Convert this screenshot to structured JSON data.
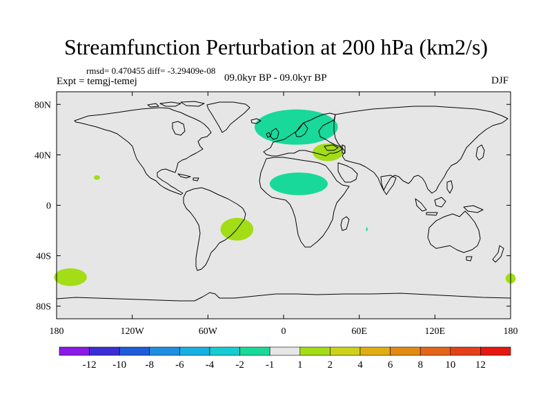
{
  "title": "Streamfunction Perturbation at 200 hPa (km2/s)",
  "stats": "rmsd= 0.470455 diff= -3.29409e-08",
  "experiment": "Expt = temgj-temej",
  "period": "09.0kyr BP - 09.0kyr BP",
  "season": "DJF",
  "chart_data": {
    "type": "heatmap",
    "projection": "cylindrical-equidistant",
    "background_color": "#e6e6e6",
    "xlim": [
      -180,
      180
    ],
    "ylim": [
      -90,
      90
    ],
    "x_ticks": [
      {
        "value": -180,
        "label": "180"
      },
      {
        "value": -120,
        "label": "120W"
      },
      {
        "value": -60,
        "label": "60W"
      },
      {
        "value": 0,
        "label": "0"
      },
      {
        "value": 60,
        "label": "60E"
      },
      {
        "value": 120,
        "label": "120E"
      },
      {
        "value": 180,
        "label": "180"
      }
    ],
    "y_ticks": [
      {
        "value": 80,
        "label": "80N"
      },
      {
        "value": 40,
        "label": "40N"
      },
      {
        "value": 0,
        "label": "0"
      },
      {
        "value": -40,
        "label": "40S"
      },
      {
        "value": -80,
        "label": "80S"
      }
    ],
    "anomalies": [
      {
        "name": "north-atlantic-europe-negative",
        "lon": 10,
        "lat": 62,
        "lon_radius": 33,
        "lat_radius": 14,
        "value": -1.5,
        "color": "#19d99a"
      },
      {
        "name": "mediterranean-positive",
        "lon": 35,
        "lat": 42,
        "lon_radius": 12,
        "lat_radius": 7,
        "value": 1.5,
        "color": "#a2dd16"
      },
      {
        "name": "north-africa-negative",
        "lon": 12,
        "lat": 17,
        "lon_radius": 23,
        "lat_radius": 9,
        "value": -1.5,
        "color": "#19d99a"
      },
      {
        "name": "south-atlantic-positive",
        "lon": -37,
        "lat": -19,
        "lon_radius": 13,
        "lat_radius": 9,
        "value": 1.5,
        "color": "#a2dd16"
      },
      {
        "name": "pacific-small-positive",
        "lon": -148,
        "lat": 22,
        "lon_radius": 2.5,
        "lat_radius": 1.8,
        "value": 1.5,
        "color": "#a2dd16"
      },
      {
        "name": "south-pacific-positive",
        "lon": -169,
        "lat": -57,
        "lon_radius": 13,
        "lat_radius": 7,
        "value": 1.5,
        "color": "#a2dd16"
      },
      {
        "name": "south-pacific-east-edge-positive",
        "lon": 180,
        "lat": -58,
        "lon_radius": 4,
        "lat_radius": 4,
        "value": 1.5,
        "color": "#a2dd16"
      },
      {
        "name": "indian-ocean-tiny-negative",
        "lon": 66,
        "lat": -19,
        "lon_radius": 0.6,
        "lat_radius": 1.6,
        "value": -1.5,
        "color": "#19d99a"
      }
    ],
    "colorbar": {
      "labels": [
        "-12",
        "-10",
        "-8",
        "-6",
        "-4",
        "-2",
        "-1",
        "1",
        "2",
        "4",
        "6",
        "8",
        "10",
        "12"
      ],
      "colors": [
        "#8b1ae6",
        "#3b2ed6",
        "#1f5cd9",
        "#1f8ee0",
        "#17b0e3",
        "#15ccd2",
        "#19d99a",
        "#e6e6e6",
        "#a2dd16",
        "#cdd11a",
        "#e0ad12",
        "#e38a12",
        "#e5641b",
        "#e5401c",
        "#e5170f"
      ]
    }
  }
}
